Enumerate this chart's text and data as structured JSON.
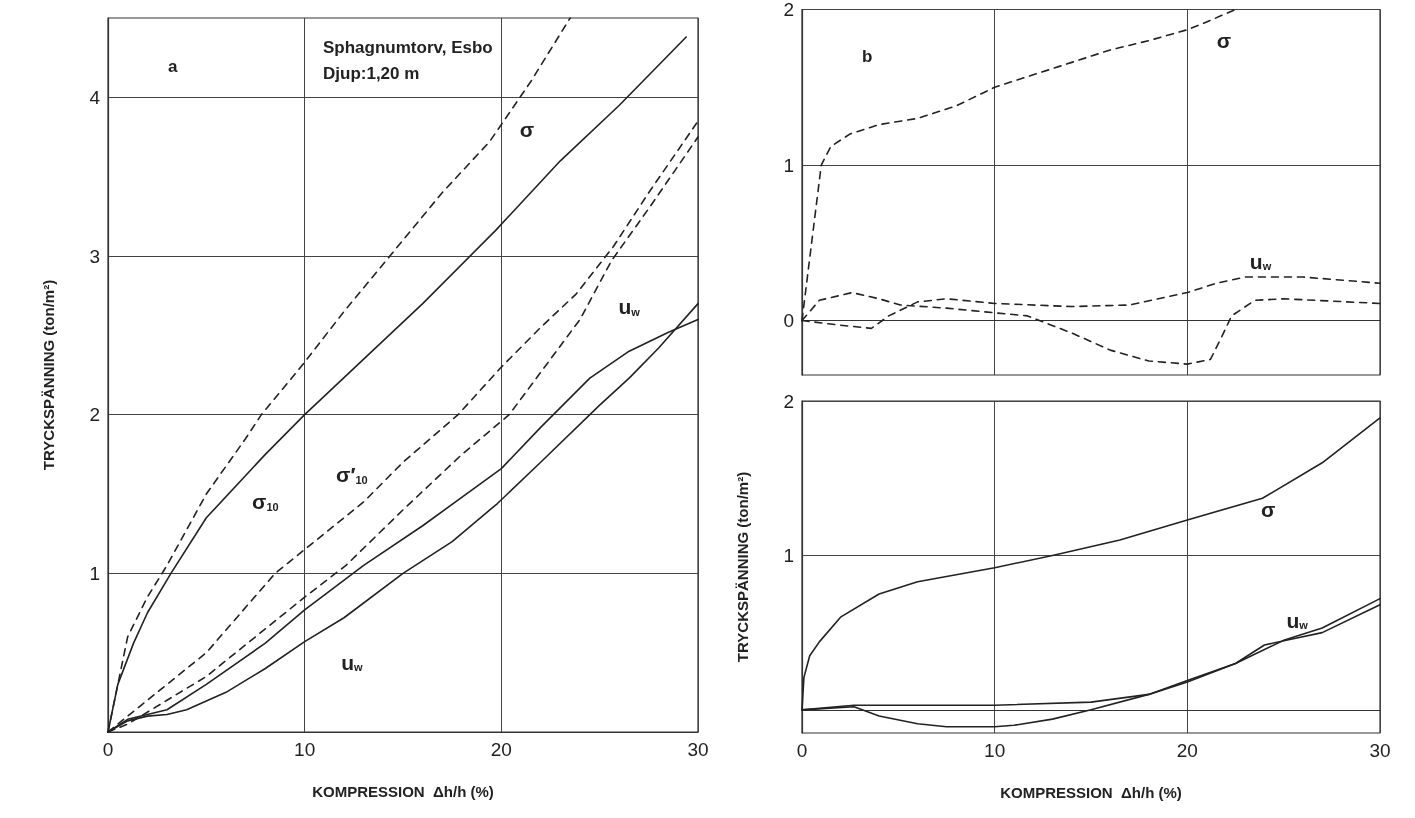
{
  "chart_data": [
    {
      "type": "line",
      "title": "Sphagnumtorv, Esbo",
      "subtitle": "Djup:1,20 m",
      "xlabel": "KOMPRESSION  Δh/h (%)",
      "ylabel": "TRYCKSPÄNNING (ton/m²)",
      "xlim": [
        0,
        30
      ],
      "xticks": [
        0,
        10,
        20,
        30
      ],
      "ylim": [
        0,
        4.5
      ],
      "yticks": [
        {
          "value": 0,
          "label": null
        },
        1,
        2,
        3,
        4
      ],
      "grid": true,
      "marker": "none",
      "annotations": [
        "a",
        {
          "text": "σ",
          "x": 21.3,
          "y": 3.8
        },
        {
          "text": "u$_{w}$",
          "x": 26.5,
          "y": 2.68
        },
        {
          "text": "σ$_{10}$",
          "x": 8,
          "y": 1.45
        },
        {
          "text": "σ′$_{10}$",
          "x": 12.4,
          "y": 1.62
        },
        {
          "text": "u$_{w}$",
          "x": 12.4,
          "y": 0.44
        }
      ],
      "series": [
        {
          "color": "#222222",
          "line_style": "dashed",
          "x": [
            0,
            1,
            2,
            3,
            5,
            7,
            7.8,
            9.8,
            12,
            15,
            17,
            19.4,
            21.5,
            23.5
          ],
          "values": [
            0,
            0.6,
            0.85,
            1.05,
            1.5,
            1.85,
            2.0,
            2.3,
            2.65,
            3.1,
            3.4,
            3.72,
            4.1,
            4.5
          ]
        },
        {
          "color": "#222222",
          "line_style": "solid",
          "x": [
            0,
            0.5,
            1.3,
            2,
            3.2,
            5,
            8,
            10,
            13,
            16,
            19.7,
            23,
            26,
            29.4
          ],
          "values": [
            0,
            0.3,
            0.56,
            0.75,
            1.0,
            1.35,
            1.75,
            2.0,
            2.35,
            2.7,
            3.16,
            3.6,
            3.95,
            4.38
          ]
        },
        {
          "color": "#222222",
          "line_style": "dashed",
          "x": [
            0,
            1,
            3,
            5,
            8.5,
            10,
            13,
            15,
            17.8,
            20,
            22,
            23.8,
            25.7,
            27.5,
            30
          ],
          "values": [
            0,
            0.1,
            0.3,
            0.5,
            1.0,
            1.15,
            1.45,
            1.7,
            2.0,
            2.3,
            2.55,
            2.76,
            3.06,
            3.4,
            3.85
          ]
        },
        {
          "color": "#222222",
          "line_style": "dashed",
          "x": [
            0,
            1,
            3,
            5,
            8,
            10,
            12.1,
            15,
            18,
            20.4,
            22.5,
            24,
            25.6,
            27.5,
            30
          ],
          "values": [
            0,
            0.05,
            0.2,
            0.35,
            0.65,
            0.85,
            1.05,
            1.4,
            1.75,
            2.0,
            2.35,
            2.6,
            2.97,
            3.3,
            3.75
          ]
        },
        {
          "color": "#222222",
          "line_style": "solid",
          "x": [
            0,
            1,
            2,
            3,
            5,
            8,
            10,
            13,
            16,
            20,
            22,
            24.5,
            26.5,
            28.5,
            30
          ],
          "values": [
            0,
            0.08,
            0.11,
            0.14,
            0.3,
            0.56,
            0.77,
            1.05,
            1.3,
            1.66,
            1.92,
            2.23,
            2.4,
            2.52,
            2.6
          ]
        },
        {
          "color": "#222222",
          "line_style": "solid",
          "x": [
            0,
            1,
            2,
            3,
            4,
            6,
            8,
            10,
            12,
            15,
            17.5,
            19.8,
            22,
            25,
            26.5,
            28,
            30
          ],
          "values": [
            0,
            0.07,
            0.1,
            0.11,
            0.14,
            0.25,
            0.4,
            0.57,
            0.72,
            1.0,
            1.2,
            1.44,
            1.7,
            2.06,
            2.23,
            2.42,
            2.7
          ]
        }
      ]
    },
    {
      "type": "line",
      "xlim": [
        0,
        30
      ],
      "xticks": [
        0,
        10,
        20,
        30
      ],
      "ylim": [
        -0.35,
        2
      ],
      "yticks": [
        0,
        1,
        2
      ],
      "tick_labels": "y",
      "grid": true,
      "marker": "none",
      "annotations": [
        "b",
        {
          "text": "σ",
          "x": 21.9,
          "y": 1.8
        },
        {
          "text": "u$_{w}$",
          "x": 23.8,
          "y": 0.38
        }
      ],
      "series": [
        {
          "color": "#222222",
          "line_style": "dashed",
          "x": [
            0,
            0.3,
            0.6,
            1,
            1.5,
            2.5,
            4,
            6,
            8,
            10,
            12,
            14,
            16,
            18,
            20,
            21,
            22.5
          ],
          "values": [
            0,
            0.3,
            0.6,
            1.0,
            1.12,
            1.2,
            1.26,
            1.3,
            1.38,
            1.5,
            1.58,
            1.66,
            1.74,
            1.8,
            1.87,
            1.92,
            2.0
          ]
        },
        {
          "color": "#222222",
          "line_style": "dashed",
          "x": [
            0,
            0.9,
            2.6,
            4,
            5.1,
            7.5,
            10,
            11.7,
            14,
            16,
            18,
            20,
            21.2,
            21.8,
            22.3,
            23.5,
            25,
            30
          ],
          "values": [
            0,
            0.13,
            0.18,
            0.14,
            0.1,
            0.08,
            0.05,
            0.03,
            -0.08,
            -0.19,
            -0.26,
            -0.28,
            -0.25,
            -0.1,
            0.03,
            0.13,
            0.14,
            0.11
          ]
        },
        {
          "color": "#222222",
          "line_style": "dashed",
          "x": [
            0,
            2,
            3.6,
            4.5,
            6,
            7.5,
            10,
            14,
            17,
            20,
            21.5,
            23,
            26,
            30
          ],
          "values": [
            0,
            -0.03,
            -0.05,
            0.03,
            0.12,
            0.14,
            0.11,
            0.09,
            0.1,
            0.18,
            0.24,
            0.28,
            0.28,
            0.24
          ]
        }
      ]
    },
    {
      "type": "line",
      "xlabel": "KOMPRESSION  Δh/h (%)",
      "ylabel": "TRYCKSPÄNNING (ton/m²)",
      "xlim": [
        0,
        30
      ],
      "xticks": [
        0,
        10,
        20,
        30
      ],
      "ylim": [
        -0.15,
        2
      ],
      "yticks": [
        {
          "value": 0,
          "label": null
        },
        1,
        2
      ],
      "grid": true,
      "marker": "none",
      "annotations": [
        {
          "text": "σ",
          "x": 24.2,
          "y": 1.3
        },
        {
          "text": "u$_{w}$",
          "x": 25.7,
          "y": 0.58
        }
      ],
      "series": [
        {
          "color": "#222222",
          "line_style": "solid",
          "x": [
            0,
            0.1,
            0.4,
            0.9,
            2,
            4,
            6,
            10,
            13,
            16.5,
            20,
            23.9,
            27,
            30
          ],
          "values": [
            0,
            0.21,
            0.35,
            0.44,
            0.6,
            0.75,
            0.83,
            0.92,
            1.0,
            1.1,
            1.23,
            1.37,
            1.6,
            1.89
          ]
        },
        {
          "color": "#222222",
          "line_style": "solid",
          "x": [
            0,
            2.7,
            10,
            15,
            18,
            20,
            22.5,
            25,
            27,
            30
          ],
          "values": [
            0,
            0.03,
            0.03,
            0.05,
            0.1,
            0.18,
            0.3,
            0.45,
            0.53,
            0.72
          ]
        },
        {
          "color": "#222222",
          "line_style": "solid",
          "x": [
            0,
            2.7,
            4,
            6,
            7.5,
            10,
            11,
            13,
            15,
            18,
            20,
            22.5,
            24,
            25.5,
            27,
            30
          ],
          "values": [
            0,
            0.02,
            -0.04,
            -0.09,
            -0.11,
            -0.11,
            -0.1,
            -0.06,
            0,
            0.1,
            0.19,
            0.3,
            0.42,
            0.46,
            0.5,
            0.68
          ]
        }
      ]
    }
  ]
}
